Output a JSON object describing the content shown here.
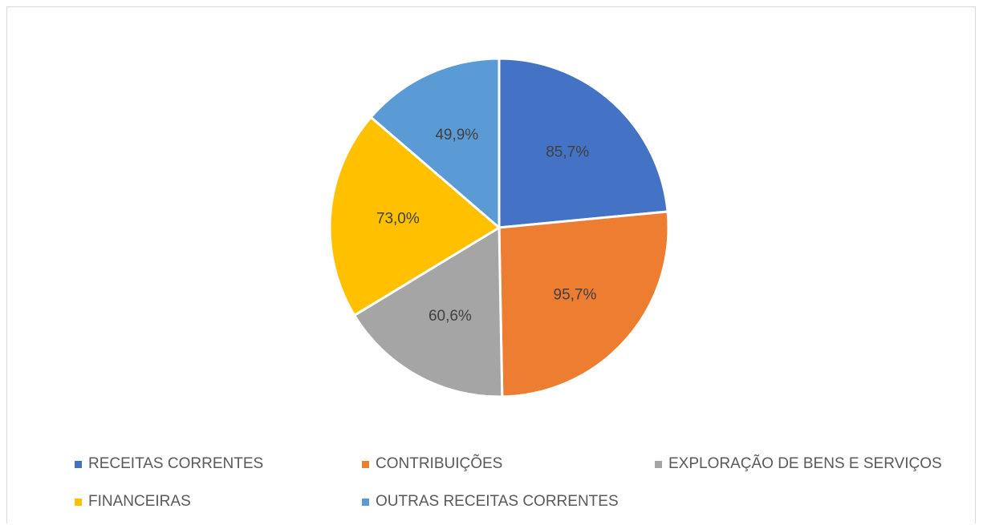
{
  "chart_data": {
    "type": "pie",
    "title": "",
    "legend_position": "bottom",
    "slices": [
      {
        "label": "RECEITAS CORRENTES",
        "value": 85.7,
        "display": "85,7%",
        "color": "#4472C4"
      },
      {
        "label": "CONTRIBUIÇÕES",
        "value": 95.7,
        "display": "95,7%",
        "color": "#ED7D31"
      },
      {
        "label": "EXPLORAÇÃO DE BENS E SERVIÇOS",
        "value": 60.6,
        "display": "60,6%",
        "color": "#A5A5A5"
      },
      {
        "label": "FINANCEIRAS",
        "value": 73.0,
        "display": "73,0%",
        "color": "#FFC000"
      },
      {
        "label": "OUTRAS RECEITAS CORRENTES",
        "value": 49.9,
        "display": "49,9%",
        "color": "#5B9BD5"
      }
    ]
  }
}
